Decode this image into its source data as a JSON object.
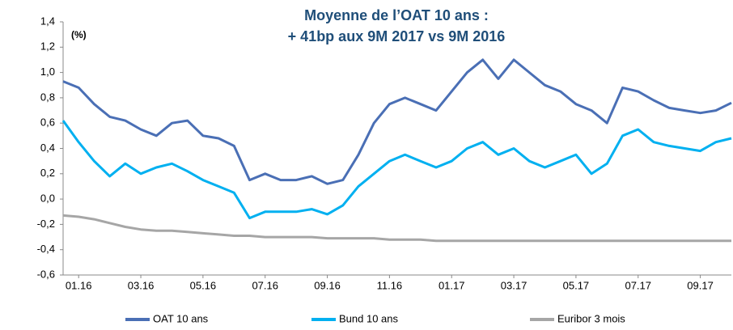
{
  "chart_data": {
    "type": "line",
    "title": "Moyenne de l’OAT 10 ans :",
    "subtitle": "+ 41bp aux 9M 2017 vs  9M 2016",
    "y_unit": "(%)",
    "categories": [
      null,
      "01.16",
      null,
      null,
      null,
      "03.16",
      null,
      null,
      null,
      "05.16",
      null,
      null,
      null,
      "07.16",
      null,
      null,
      null,
      "09.16",
      null,
      null,
      null,
      "11.16",
      null,
      null,
      null,
      "01.17",
      null,
      null,
      null,
      "03.17",
      null,
      null,
      null,
      "05.17",
      null,
      null,
      null,
      "07.17",
      null,
      null,
      null,
      "09.17",
      null,
      null
    ],
    "series": [
      {
        "name": "OAT 10 ans",
        "color": "#4a6fb5",
        "values": [
          0.93,
          0.88,
          0.75,
          0.65,
          0.62,
          0.55,
          0.5,
          0.6,
          0.62,
          0.5,
          0.48,
          0.42,
          0.15,
          0.2,
          0.15,
          0.15,
          0.18,
          0.12,
          0.15,
          0.35,
          0.6,
          0.75,
          0.8,
          0.75,
          0.7,
          0.85,
          1.0,
          1.1,
          0.95,
          1.1,
          1.0,
          0.9,
          0.85,
          0.75,
          0.7,
          0.6,
          0.88,
          0.85,
          0.78,
          0.72,
          0.7,
          0.68,
          0.7,
          0.76
        ]
      },
      {
        "name": "Bund 10 ans",
        "color": "#00b0f0",
        "values": [
          0.62,
          0.45,
          0.3,
          0.18,
          0.28,
          0.2,
          0.25,
          0.28,
          0.22,
          0.15,
          0.1,
          0.05,
          -0.15,
          -0.1,
          -0.1,
          -0.1,
          -0.08,
          -0.12,
          -0.05,
          0.1,
          0.2,
          0.3,
          0.35,
          0.3,
          0.25,
          0.3,
          0.4,
          0.45,
          0.35,
          0.4,
          0.3,
          0.25,
          0.3,
          0.35,
          0.2,
          0.28,
          0.5,
          0.55,
          0.45,
          0.42,
          0.4,
          0.38,
          0.45,
          0.48
        ]
      },
      {
        "name": "Euribor 3 mois",
        "color": "#a6a6a6",
        "values": [
          -0.13,
          -0.14,
          -0.16,
          -0.19,
          -0.22,
          -0.24,
          -0.25,
          -0.25,
          -0.26,
          -0.27,
          -0.28,
          -0.29,
          -0.29,
          -0.3,
          -0.3,
          -0.3,
          -0.3,
          -0.31,
          -0.31,
          -0.31,
          -0.31,
          -0.32,
          -0.32,
          -0.32,
          -0.33,
          -0.33,
          -0.33,
          -0.33,
          -0.33,
          -0.33,
          -0.33,
          -0.33,
          -0.33,
          -0.33,
          -0.33,
          -0.33,
          -0.33,
          -0.33,
          -0.33,
          -0.33,
          -0.33,
          -0.33,
          -0.33,
          -0.33
        ]
      }
    ],
    "ylim": [
      -0.6,
      1.4
    ],
    "yticks": [
      {
        "value": -0.6,
        "label": "-0,6"
      },
      {
        "value": -0.4,
        "label": "-0,4"
      },
      {
        "value": -0.2,
        "label": "-0,2"
      },
      {
        "value": 0,
        "label": "0,0"
      },
      {
        "value": 0.2,
        "label": "0,2"
      },
      {
        "value": 0.4,
        "label": "0,4"
      },
      {
        "value": 0.6,
        "label": "0,6"
      },
      {
        "value": 0.8,
        "label": "0,8"
      },
      {
        "value": 1.0,
        "label": "1,0"
      },
      {
        "value": 1.2,
        "label": "1,2"
      },
      {
        "value": 1.4,
        "label": "1,4"
      }
    ],
    "grid": false,
    "legend": "bottom"
  }
}
